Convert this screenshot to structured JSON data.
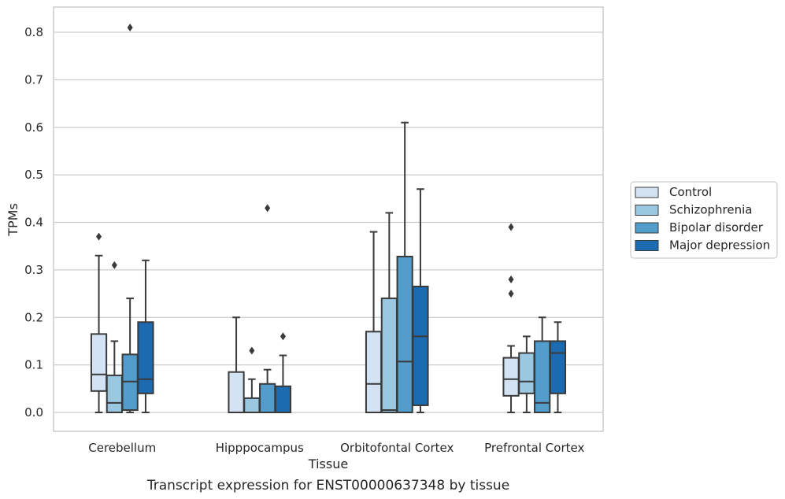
{
  "caption": "Transcript expression for ENST00000637348 by tissue",
  "chart_data": {
    "type": "box",
    "xlabel": "Tissue",
    "ylabel": "TPMs",
    "ylim": [
      -0.04,
      0.855
    ],
    "yticks": [
      0.0,
      0.1,
      0.2,
      0.3,
      0.4,
      0.5,
      0.6,
      0.7,
      0.8
    ],
    "ytick_labels": [
      "0.0",
      "0.1",
      "0.2",
      "0.3",
      "0.4",
      "0.5",
      "0.6",
      "0.7",
      "0.8"
    ],
    "grid": "horizontal",
    "legend_position": "right",
    "categories": [
      "Cerebellum",
      "Hipppocampus",
      "Orbitofontal Cortex",
      "Prefrontal Cortex"
    ],
    "series": [
      {
        "name": "Control",
        "color": "#d3e3f3",
        "boxes": [
          {
            "min": 0.0,
            "q1": 0.045,
            "median": 0.08,
            "q3": 0.165,
            "max": 0.33,
            "outliers": [
              0.37
            ]
          },
          {
            "min": 0.0,
            "q1": 0.0,
            "median": 0.0,
            "q3": 0.085,
            "max": 0.2,
            "outliers": []
          },
          {
            "min": 0.0,
            "q1": 0.0,
            "median": 0.06,
            "q3": 0.17,
            "max": 0.38,
            "outliers": []
          },
          {
            "min": 0.0,
            "q1": 0.035,
            "median": 0.07,
            "q3": 0.115,
            "max": 0.14,
            "outliers": [
              0.25,
              0.28,
              0.39
            ]
          }
        ]
      },
      {
        "name": "Schizophrenia",
        "color": "#9ac8e0",
        "boxes": [
          {
            "min": 0.0,
            "q1": 0.0,
            "median": 0.02,
            "q3": 0.078,
            "max": 0.15,
            "outliers": [
              0.31
            ]
          },
          {
            "min": 0.0,
            "q1": 0.0,
            "median": 0.0,
            "q3": 0.03,
            "max": 0.07,
            "outliers": [
              0.13
            ]
          },
          {
            "min": 0.0,
            "q1": 0.0,
            "median": 0.005,
            "q3": 0.24,
            "max": 0.42,
            "outliers": []
          },
          {
            "min": 0.0,
            "q1": 0.04,
            "median": 0.065,
            "q3": 0.125,
            "max": 0.16,
            "outliers": []
          }
        ]
      },
      {
        "name": "Bipolar disorder",
        "color": "#529dcc",
        "boxes": [
          {
            "min": 0.0,
            "q1": 0.005,
            "median": 0.065,
            "q3": 0.122,
            "max": 0.24,
            "outliers": [
              0.81
            ]
          },
          {
            "min": 0.0,
            "q1": 0.0,
            "median": 0.0,
            "q3": 0.06,
            "max": 0.09,
            "outliers": [
              0.43
            ]
          },
          {
            "min": 0.0,
            "q1": 0.0,
            "median": 0.107,
            "q3": 0.328,
            "max": 0.61,
            "outliers": []
          },
          {
            "min": 0.0,
            "q1": 0.0,
            "median": 0.02,
            "q3": 0.15,
            "max": 0.2,
            "outliers": []
          }
        ]
      },
      {
        "name": "Major depression",
        "color": "#1c6aaf",
        "boxes": [
          {
            "min": 0.0,
            "q1": 0.04,
            "median": 0.07,
            "q3": 0.19,
            "max": 0.32,
            "outliers": []
          },
          {
            "min": 0.0,
            "q1": 0.0,
            "median": 0.0,
            "q3": 0.055,
            "max": 0.12,
            "outliers": [
              0.16
            ]
          },
          {
            "min": 0.0,
            "q1": 0.015,
            "median": 0.16,
            "q3": 0.265,
            "max": 0.47,
            "outliers": []
          },
          {
            "min": 0.0,
            "q1": 0.04,
            "median": 0.125,
            "q3": 0.15,
            "max": 0.19,
            "outliers": []
          }
        ]
      }
    ]
  }
}
